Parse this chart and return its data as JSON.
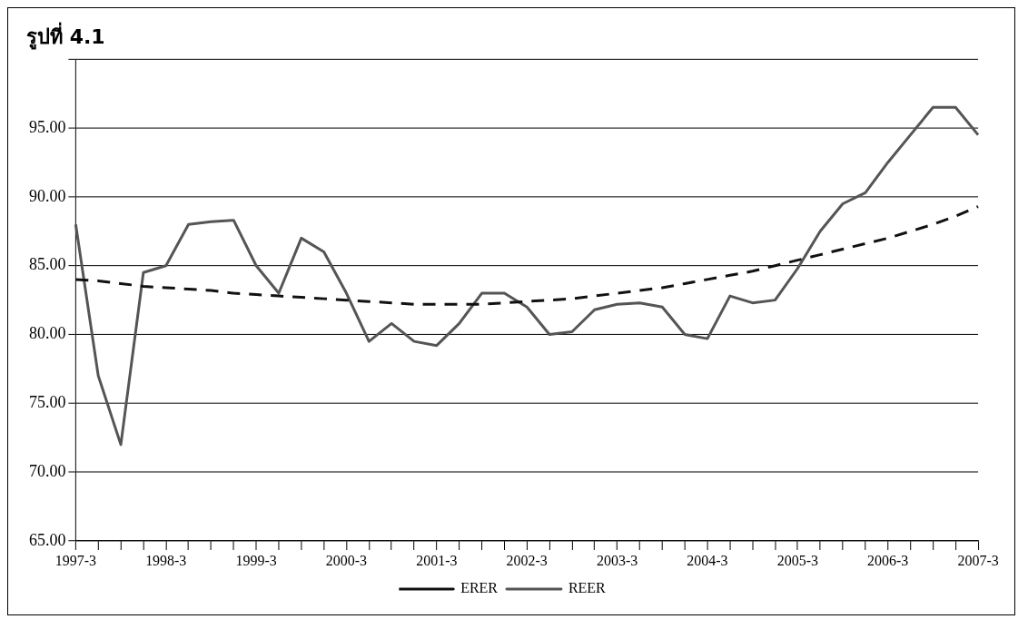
{
  "chart_data": {
    "type": "line",
    "title": "รูปที่ 4.1",
    "categories": [
      "1997-3",
      null,
      null,
      null,
      "1998-3",
      null,
      null,
      null,
      "1999-3",
      null,
      null,
      null,
      "2000-3",
      null,
      null,
      null,
      "2001-3",
      null,
      null,
      null,
      "2002-3",
      null,
      null,
      null,
      "2003-3",
      null,
      null,
      null,
      "2004-3",
      null,
      null,
      null,
      "2005-3",
      null,
      null,
      null,
      "2006-3",
      null,
      null,
      null,
      "2007-3"
    ],
    "series": [
      {
        "name": "ERER",
        "color": "#111111",
        "line_style": "dashed",
        "values": [
          84,
          83.9,
          83.7,
          83.5,
          83.4,
          83.3,
          83.2,
          83.0,
          82.9,
          82.8,
          82.7,
          82.6,
          82.5,
          82.4,
          82.3,
          82.2,
          82.2,
          82.2,
          82.2,
          82.3,
          82.4,
          82.5,
          82.6,
          82.8,
          83.0,
          83.2,
          83.4,
          83.7,
          84.0,
          84.3,
          84.6,
          85.0,
          85.4,
          85.8,
          86.2,
          86.6,
          87.0,
          87.5,
          88.0,
          88.6,
          89.3
        ]
      },
      {
        "name": "REER",
        "color": "#555555",
        "line_style": "solid",
        "values": [
          88,
          77,
          72,
          84.5,
          85,
          88,
          88.2,
          88.3,
          85,
          83,
          87,
          86,
          83,
          79.5,
          80.8,
          79.5,
          79.2,
          80.8,
          83,
          83,
          82,
          80,
          80.2,
          81.8,
          82.2,
          82.3,
          82,
          80,
          79.7,
          82.8,
          82.3,
          82.5,
          84.8,
          87.5,
          89.5,
          90.3,
          92.5,
          94.5,
          96.5,
          96.5,
          94.5
        ]
      }
    ],
    "ylim": [
      65,
      100
    ],
    "yticks": [
      {
        "value": 65,
        "label": "65.00"
      },
      {
        "value": 70,
        "label": "70.00"
      },
      {
        "value": 75,
        "label": "75.00"
      },
      {
        "value": 80,
        "label": "80.00"
      },
      {
        "value": 85,
        "label": "85.00"
      },
      {
        "value": 90,
        "label": "90.00"
      },
      {
        "value": 95,
        "label": "95.00"
      },
      {
        "value": 100,
        "label": null
      }
    ],
    "grid": "y",
    "legend": "bottom",
    "marker": "none"
  }
}
